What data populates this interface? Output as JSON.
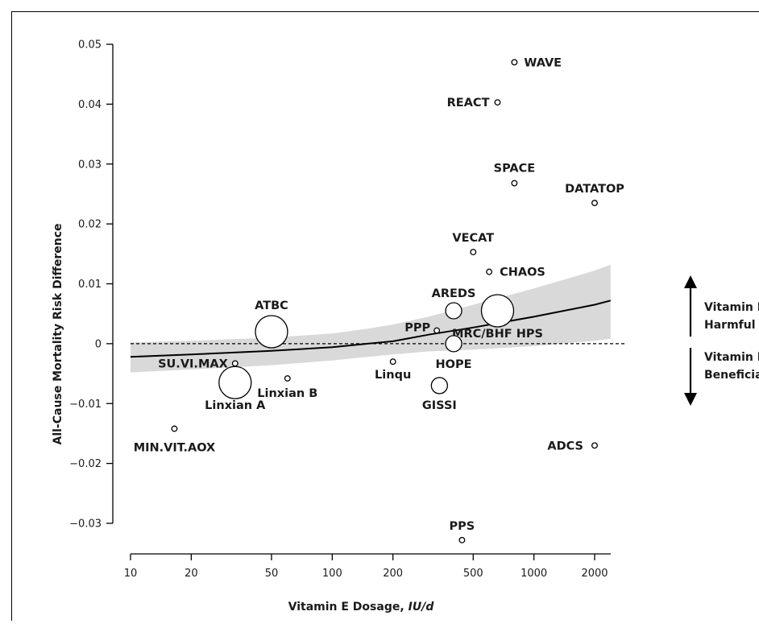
{
  "chart_data": {
    "type": "scatter",
    "x_scale": "log",
    "xlabel": "Vitamin E Dosage,",
    "xlabel_unit": "IU/d",
    "ylabel": "All-Cause Mortality Risk Difference",
    "xlim": [
      10,
      2500
    ],
    "ylim": [
      -0.033,
      0.05
    ],
    "x_ticks": [
      10,
      20,
      50,
      100,
      200,
      500,
      1000,
      2000
    ],
    "y_ticks": [
      0.05,
      0.04,
      0.03,
      0.02,
      0.01,
      0,
      -0.01,
      -0.02,
      -0.03
    ],
    "y_tick_labels": [
      "0.05",
      "0.04",
      "0.03",
      "0.02",
      "0.01",
      "0",
      "−0.01",
      "−0.02",
      "−0.03"
    ],
    "reference_line": 0,
    "points": [
      {
        "label": "WAVE",
        "x": 800,
        "y": 0.047,
        "size": "small"
      },
      {
        "label": "REACT",
        "x": 660,
        "y": 0.0403,
        "size": "small"
      },
      {
        "label": "SPACE",
        "x": 800,
        "y": 0.0268,
        "size": "small"
      },
      {
        "label": "DATATOP",
        "x": 2000,
        "y": 0.0235,
        "size": "small"
      },
      {
        "label": "VECAT",
        "x": 500,
        "y": 0.0153,
        "size": "small"
      },
      {
        "label": "CHAOS",
        "x": 600,
        "y": 0.012,
        "size": "small"
      },
      {
        "label": "AREDS",
        "x": 400,
        "y": 0.0055,
        "size": "medium"
      },
      {
        "label": "MRC/BHF HPS",
        "x": 660,
        "y": 0.0055,
        "size": "large"
      },
      {
        "label": "PPP",
        "x": 330,
        "y": 0.0022,
        "size": "small"
      },
      {
        "label": "HOPE",
        "x": 400,
        "y": 0.0,
        "size": "medium"
      },
      {
        "label": "ATBC",
        "x": 50,
        "y": 0.002,
        "size": "large"
      },
      {
        "label": "SU.VI.MAX",
        "x": 33,
        "y": -0.0033,
        "size": "small"
      },
      {
        "label": "Linxian A",
        "x": 33,
        "y": -0.0065,
        "size": "large"
      },
      {
        "label": "Linxian B",
        "x": 60,
        "y": -0.0058,
        "size": "small"
      },
      {
        "label": "Linqu",
        "x": 200,
        "y": -0.003,
        "size": "small"
      },
      {
        "label": "GISSI",
        "x": 340,
        "y": -0.007,
        "size": "medium"
      },
      {
        "label": "MIN.VIT.AOX",
        "x": 16.5,
        "y": -0.0142,
        "size": "small"
      },
      {
        "label": "ADCS",
        "x": 2000,
        "y": -0.017,
        "size": "small"
      },
      {
        "label": "PPS",
        "x": 440,
        "y": -0.0328,
        "size": "small"
      }
    ],
    "fit_curve": {
      "x": [
        10,
        20,
        50,
        100,
        150,
        200,
        300,
        500,
        1000,
        2000,
        2400
      ],
      "y": [
        -0.0022,
        -0.0018,
        -0.0012,
        -0.0006,
        0.0,
        0.0004,
        0.0015,
        0.0027,
        0.0045,
        0.0065,
        0.0072
      ],
      "upper": [
        0.0002,
        0.0005,
        0.001,
        0.0017,
        0.0025,
        0.0032,
        0.0045,
        0.0065,
        0.0092,
        0.0122,
        0.0132
      ],
      "lower": [
        -0.0048,
        -0.0043,
        -0.0036,
        -0.0028,
        -0.0022,
        -0.0018,
        -0.0013,
        -0.001,
        -0.0004,
        0.0005,
        0.0008
      ]
    },
    "annotations": {
      "harmful": [
        "Vitamin E",
        "Harmful"
      ],
      "beneficial": [
        "Vitamin E",
        "Beneficial"
      ]
    }
  }
}
